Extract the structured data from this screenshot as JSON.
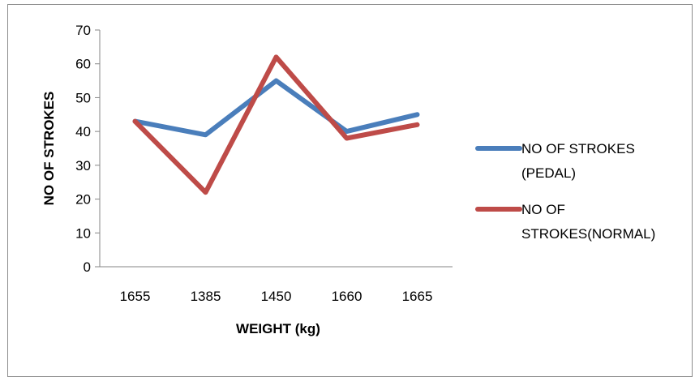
{
  "chart_data": {
    "type": "line",
    "categories": [
      "1655",
      "1385",
      "1450",
      "1660",
      "1665"
    ],
    "series": [
      {
        "name": "NO OF STROKES (PEDAL)",
        "name_lines": [
          "NO OF STROKES",
          "(PEDAL)"
        ],
        "values": [
          43,
          39,
          55,
          40,
          45
        ],
        "color": "#4a7ebb"
      },
      {
        "name": "NO OF STROKES(NORMAL)",
        "name_lines": [
          "NO OF",
          "STROKES(NORMAL)"
        ],
        "values": [
          43,
          22,
          62,
          38,
          42
        ],
        "color": "#be4b48"
      }
    ],
    "xlabel": "WEIGHT (kg)",
    "ylabel": "NO OF STROKES",
    "ylim": [
      0,
      70
    ],
    "yticks": [
      0,
      10,
      20,
      30,
      40,
      50,
      60,
      70
    ],
    "grid": false,
    "legend": "right"
  }
}
